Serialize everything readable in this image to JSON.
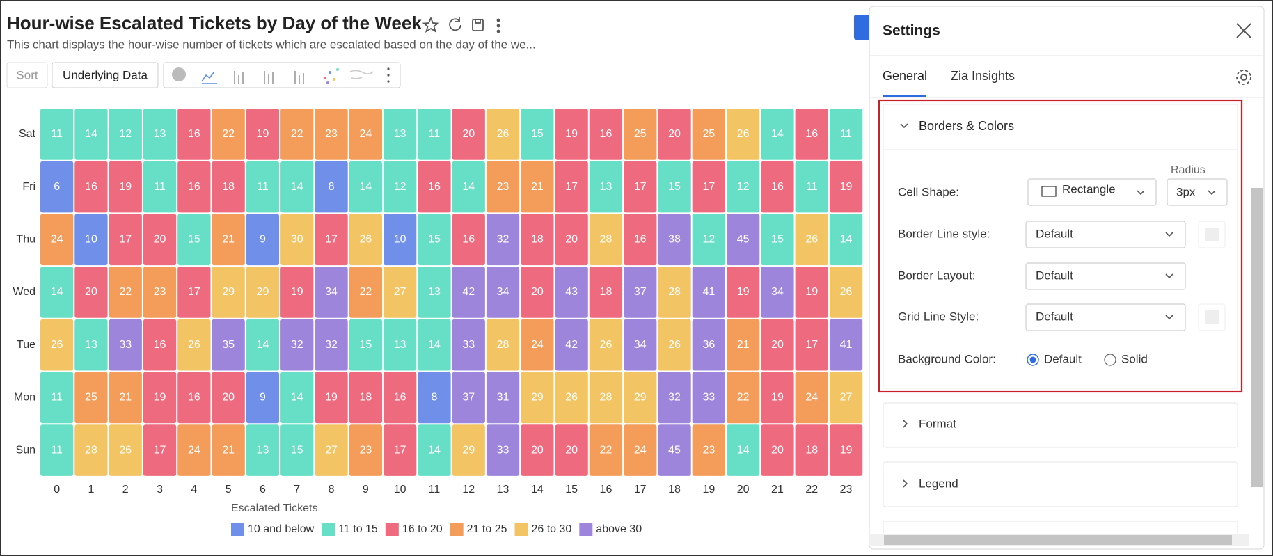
{
  "header": {
    "title": "Hour-wise Escalated Tickets by Day of the Week",
    "subtitle": "This chart displays the hour-wise number of tickets which are escalated based on the day of the we..."
  },
  "toolbar": {
    "sort": "Sort",
    "underlying_data": "Underlying Data"
  },
  "chart_data": {
    "type": "heatmap",
    "x": [
      0,
      1,
      2,
      3,
      4,
      5,
      6,
      7,
      8,
      9,
      10,
      11,
      12,
      13,
      14,
      15,
      16,
      17,
      18,
      19,
      20,
      21,
      22,
      23
    ],
    "y_categories": [
      "Sat",
      "Fri",
      "Thu",
      "Wed",
      "Tue",
      "Mon",
      "Sun"
    ],
    "values": [
      [
        11,
        14,
        12,
        13,
        16,
        22,
        19,
        22,
        23,
        24,
        13,
        11,
        20,
        26,
        15,
        19,
        16,
        25,
        20,
        25,
        26,
        14,
        16,
        11
      ],
      [
        6,
        16,
        19,
        11,
        16,
        18,
        11,
        14,
        8,
        14,
        12,
        16,
        14,
        23,
        21,
        17,
        13,
        17,
        15,
        17,
        12,
        16,
        11,
        19
      ],
      [
        24,
        10,
        17,
        20,
        15,
        21,
        9,
        30,
        17,
        26,
        10,
        15,
        16,
        32,
        18,
        20,
        28,
        16,
        38,
        12,
        45,
        15,
        26,
        14
      ],
      [
        14,
        20,
        22,
        23,
        17,
        29,
        29,
        19,
        34,
        22,
        27,
        13,
        42,
        34,
        20,
        43,
        18,
        37,
        28,
        41,
        19,
        34,
        19,
        26
      ],
      [
        26,
        13,
        33,
        16,
        26,
        35,
        14,
        32,
        32,
        15,
        13,
        14,
        33,
        28,
        24,
        42,
        26,
        34,
        26,
        36,
        21,
        20,
        17,
        41
      ],
      [
        11,
        25,
        21,
        19,
        16,
        20,
        9,
        14,
        19,
        18,
        16,
        8,
        37,
        31,
        29,
        26,
        28,
        29,
        32,
        33,
        22,
        19,
        24,
        27
      ],
      [
        11,
        28,
        26,
        17,
        24,
        21,
        13,
        15,
        27,
        23,
        17,
        14,
        29,
        33,
        20,
        20,
        22,
        24,
        45,
        23,
        14,
        20,
        18,
        19
      ]
    ],
    "legend_title": "Escalated Tickets",
    "legend": [
      {
        "name": "10 and below",
        "color": "#6f8fe8"
      },
      {
        "name": "11 to 15",
        "color": "#66dfc6"
      },
      {
        "name": "16 to 20",
        "color": "#ee6b7f"
      },
      {
        "name": "21 to 25",
        "color": "#f49d5a"
      },
      {
        "name": "26 to 30",
        "color": "#f3c463"
      },
      {
        "name": "above 30",
        "color": "#9d85dc"
      }
    ]
  },
  "settings": {
    "title": "Settings",
    "tabs": [
      "General",
      "Zia Insights"
    ],
    "section": "Borders & Colors",
    "cell_shape_label": "Cell Shape:",
    "cell_shape_value": "Rectangle",
    "radius_label": "Radius",
    "radius_value": "3px",
    "border_line_label": "Border Line style:",
    "border_line_value": "Default",
    "border_layout_label": "Border Layout:",
    "border_layout_value": "Default",
    "grid_line_label": "Grid Line Style:",
    "grid_line_value": "Default",
    "background_label": "Background Color:",
    "background_options": [
      "Default",
      "Solid"
    ],
    "collapsed_sections": [
      "Format",
      "Legend"
    ]
  }
}
